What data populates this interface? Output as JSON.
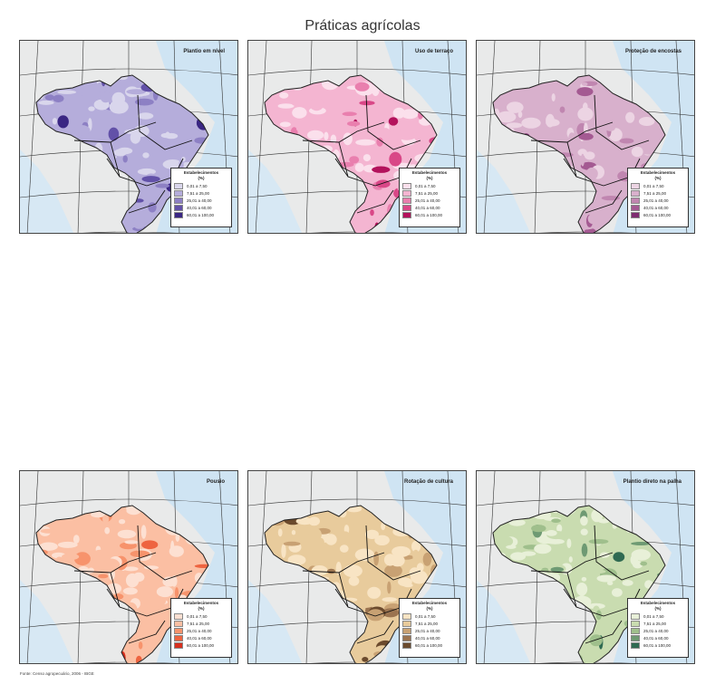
{
  "title": "Práticas agrícolas",
  "source": "Fonte: Censo agropecuário, 2006 - IBGE",
  "legend": {
    "heading1": "Estabelecimentos",
    "heading2": "(%)",
    "classes": [
      "0,01 a 7,50",
      "7,51 a 25,00",
      "25,01 a 40,00",
      "40,01 a 60,00",
      "60,01 a 100,00"
    ]
  },
  "panels": [
    {
      "title": "Plantio em nível",
      "colors": [
        "#d9d6ec",
        "#b5addb",
        "#8d80c4",
        "#6251a8",
        "#3a2683"
      ]
    },
    {
      "title": "Uso de terraço",
      "colors": [
        "#fbe0ec",
        "#f4b5d1",
        "#e97fae",
        "#d94787",
        "#b3125c"
      ]
    },
    {
      "title": "Proteção de encostas",
      "colors": [
        "#ecd4e3",
        "#d8b0cc",
        "#c086b0",
        "#a45a92",
        "#7e2c70"
      ]
    },
    {
      "title": "Pousio",
      "colors": [
        "#fde0d2",
        "#fbbfa3",
        "#f7936c",
        "#ee6440",
        "#d7301f"
      ]
    },
    {
      "title": "Rotação de cultura",
      "colors": [
        "#f8e4c4",
        "#e8cb9c",
        "#c8a173",
        "#9b7450",
        "#6b4a2d"
      ]
    },
    {
      "title": "Plantio direto na palha",
      "colors": [
        "#e8f0d8",
        "#c9dcb0",
        "#9fbf8c",
        "#6e9a73",
        "#2f6a52"
      ]
    }
  ]
}
